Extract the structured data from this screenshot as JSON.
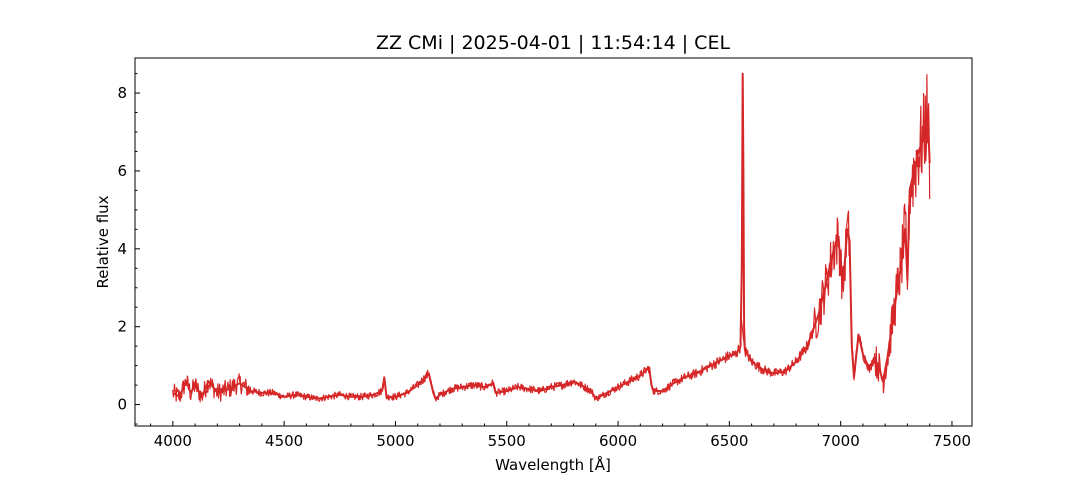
{
  "chart_data": {
    "type": "line",
    "title": "ZZ CMi | 2025-04-01 | 11:54:14 | CEL",
    "xlabel": "Wavelength [Å]",
    "ylabel": "Relative flux",
    "xlim": [
      3830,
      7590
    ],
    "ylim": [
      -0.55,
      8.9
    ],
    "xticks": [
      4000,
      4500,
      5000,
      5500,
      6000,
      6500,
      7000,
      7500
    ],
    "yticks": [
      0,
      2,
      4,
      6,
      8
    ],
    "grid": false,
    "legend": "none",
    "series": [
      {
        "color": "#d62728",
        "x": [
          4000,
          4030,
          4060,
          4080,
          4100,
          4130,
          4160,
          4200,
          4250,
          4300,
          4350,
          4400,
          4450,
          4500,
          4550,
          4600,
          4650,
          4700,
          4750,
          4800,
          4850,
          4900,
          4940,
          4950,
          4960,
          5000,
          5050,
          5100,
          5150,
          5170,
          5180,
          5200,
          5250,
          5300,
          5350,
          5400,
          5440,
          5450,
          5500,
          5550,
          5600,
          5650,
          5700,
          5750,
          5800,
          5850,
          5880,
          5900,
          5950,
          6000,
          6050,
          6100,
          6140,
          6150,
          6160,
          6200,
          6250,
          6300,
          6350,
          6400,
          6450,
          6500,
          6530,
          6550,
          6556,
          6560,
          6563,
          6566,
          6570,
          6600,
          6650,
          6700,
          6750,
          6800,
          6850,
          6900,
          6930,
          6950,
          6970,
          6990,
          7010,
          7030,
          7040,
          7050,
          7060,
          7080,
          7100,
          7130,
          7150,
          7170,
          7190,
          7210,
          7230,
          7250,
          7270,
          7290,
          7300,
          7310,
          7330,
          7350,
          7370,
          7390,
          7400
        ],
        "y": [
          0.3,
          0.2,
          0.6,
          0.3,
          0.5,
          0.2,
          0.6,
          0.3,
          0.4,
          0.55,
          0.35,
          0.3,
          0.3,
          0.2,
          0.25,
          0.2,
          0.15,
          0.2,
          0.25,
          0.2,
          0.2,
          0.25,
          0.35,
          0.7,
          0.2,
          0.2,
          0.3,
          0.5,
          0.8,
          0.3,
          0.15,
          0.25,
          0.4,
          0.45,
          0.5,
          0.45,
          0.55,
          0.3,
          0.35,
          0.45,
          0.4,
          0.35,
          0.45,
          0.5,
          0.6,
          0.45,
          0.35,
          0.15,
          0.3,
          0.45,
          0.6,
          0.75,
          0.95,
          0.5,
          0.35,
          0.35,
          0.55,
          0.7,
          0.8,
          0.95,
          1.1,
          1.25,
          1.3,
          1.5,
          3.5,
          8.5,
          6.0,
          2.0,
          1.4,
          1.1,
          0.9,
          0.8,
          0.85,
          1.1,
          1.5,
          2.3,
          3.0,
          3.5,
          4.0,
          4.3,
          3.0,
          4.5,
          4.2,
          1.5,
          0.7,
          1.8,
          1.3,
          0.9,
          1.2,
          1.0,
          0.6,
          1.2,
          2.0,
          2.8,
          3.5,
          4.5,
          3.2,
          5.5,
          6.0,
          6.5,
          6.8,
          7.5,
          6.2
        ]
      }
    ]
  }
}
